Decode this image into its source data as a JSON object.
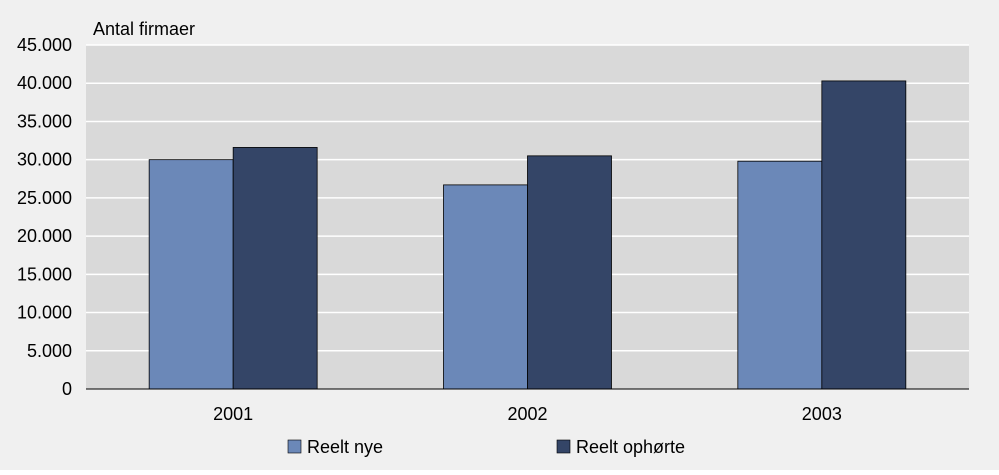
{
  "chart_data": {
    "type": "bar",
    "categories": [
      "2001",
      "2002",
      "2003"
    ],
    "series": [
      {
        "name": "Reelt nye",
        "values": [
          30000,
          26700,
          29800
        ],
        "color": "#6b88b8"
      },
      {
        "name": "Reelt ophørte",
        "values": [
          31600,
          30500,
          40300
        ],
        "color": "#344567"
      }
    ],
    "ylabel": "Antal firmaer",
    "ylim": [
      0,
      45000
    ],
    "yticks": [
      0,
      5000,
      10000,
      15000,
      20000,
      25000,
      30000,
      35000,
      40000,
      45000
    ],
    "ytick_labels": [
      "0",
      "5.000",
      "10.000",
      "15.000",
      "20.000",
      "25.000",
      "30.000",
      "35.000",
      "40.000",
      "45.000"
    ],
    "grid": true,
    "legend_position": "bottom",
    "plot_background": "#d9d9d9",
    "figure_background": "#f0f0f0"
  }
}
